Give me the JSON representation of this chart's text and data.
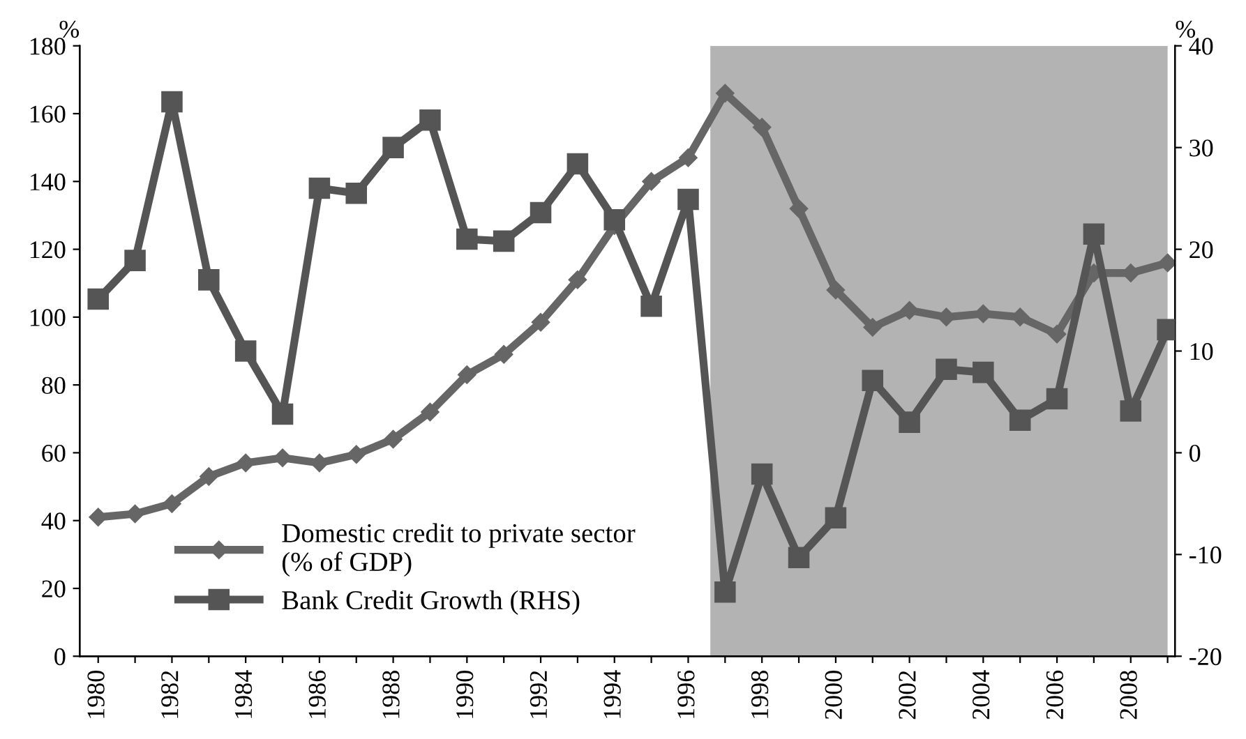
{
  "chart_data": {
    "type": "line",
    "ylabel": "%",
    "y2label": "%",
    "x": [
      1980,
      1981,
      1982,
      1983,
      1984,
      1985,
      1986,
      1987,
      1988,
      1989,
      1990,
      1991,
      1992,
      1993,
      1994,
      1995,
      1996,
      1997,
      1998,
      1999,
      2000,
      2001,
      2002,
      2003,
      2004,
      2005,
      2006,
      2007,
      2008,
      2009
    ],
    "series": [
      {
        "name": "Domestic credit to private sector\n(% of GDP)",
        "color": "#666666",
        "marker": "diamond",
        "values": [
          41,
          42,
          45,
          53,
          57,
          58.5,
          57,
          59.5,
          64,
          72,
          83,
          89,
          98.5,
          111,
          127,
          140,
          147,
          166,
          156,
          132,
          108,
          97,
          102,
          100,
          101,
          100,
          95,
          113,
          113,
          116
        ]
      },
      {
        "name": "Bank Credit Growth (RHS)",
        "color": "#555555",
        "marker": "square",
        "axis": "y2",
        "values": [
          15.1,
          18.9,
          34.5,
          17.0,
          10.0,
          3.8,
          26.0,
          25.5,
          30.0,
          32.7,
          21.0,
          20.8,
          23.6,
          28.4,
          22.9,
          14.4,
          24.9,
          -13.7,
          -2.1,
          -10.3,
          -6.4,
          7.1,
          3.0,
          8.2,
          7.9,
          3.2,
          5.3,
          21.5,
          4.1,
          12.1
        ]
      }
    ],
    "xlim": [
      1979.5,
      2009.2
    ],
    "xticks": [
      1980,
      {
        "value": 1981,
        "label": null
      },
      1982,
      {
        "value": 1983,
        "label": null
      },
      1984,
      {
        "value": 1985,
        "label": null
      },
      1986,
      {
        "value": 1987,
        "label": null
      },
      1988,
      {
        "value": 1989,
        "label": null
      },
      1990,
      {
        "value": 1991,
        "label": null
      },
      1992,
      {
        "value": 1993,
        "label": null
      },
      1994,
      {
        "value": 1995,
        "label": null
      },
      1996,
      {
        "value": 1997,
        "label": null
      },
      1998,
      {
        "value": 1999,
        "label": null
      },
      2000,
      {
        "value": 2001,
        "label": null
      },
      2002,
      {
        "value": 2003,
        "label": null
      },
      2004,
      {
        "value": 2005,
        "label": null
      },
      2006,
      {
        "value": 2007,
        "label": null
      },
      2008,
      {
        "value": 2009,
        "label": null
      }
    ],
    "ylim": [
      0,
      180
    ],
    "yticks": [
      0,
      20,
      40,
      60,
      80,
      100,
      120,
      140,
      160,
      180
    ],
    "y2lim": [
      -20,
      40
    ],
    "y2ticks": [
      -20,
      -10,
      0,
      10,
      20,
      30,
      40
    ],
    "bands": [
      {
        "axis": "x",
        "from": 1996.6,
        "to": 2009.0,
        "color": "#b3b3b3"
      }
    ],
    "grid": false,
    "legend": "bottom left",
    "line_style": "solid"
  }
}
